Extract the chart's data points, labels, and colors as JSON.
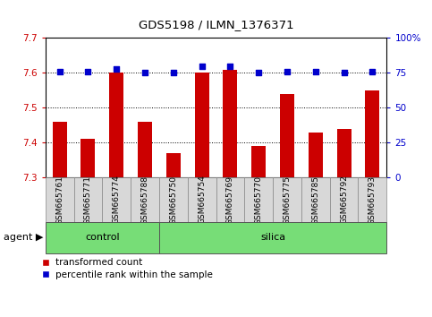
{
  "title": "GDS5198 / ILMN_1376371",
  "samples": [
    "GSM665761",
    "GSM665771",
    "GSM665774",
    "GSM665788",
    "GSM665750",
    "GSM665754",
    "GSM665769",
    "GSM665770",
    "GSM665775",
    "GSM665785",
    "GSM665792",
    "GSM665793"
  ],
  "transformed_count": [
    7.46,
    7.41,
    7.6,
    7.46,
    7.37,
    7.6,
    7.61,
    7.39,
    7.54,
    7.43,
    7.44,
    7.55
  ],
  "percentile_rank": [
    76,
    76,
    78,
    75,
    75,
    80,
    80,
    75,
    76,
    76,
    75,
    76
  ],
  "control_indices": [
    0,
    1,
    2,
    3
  ],
  "silica_indices": [
    4,
    5,
    6,
    7,
    8,
    9,
    10,
    11
  ],
  "group_row_label": "agent",
  "ylim_left": [
    7.3,
    7.7
  ],
  "ylim_right": [
    0,
    100
  ],
  "yticks_left": [
    7.3,
    7.4,
    7.5,
    7.6,
    7.7
  ],
  "yticks_right": [
    0,
    25,
    50,
    75,
    100
  ],
  "bar_color": "#CC0000",
  "dot_color": "#0000CC",
  "tick_label_color_left": "#CC0000",
  "tick_label_color_right": "#0000CC",
  "grid_linestyle": "dotted",
  "bar_width": 0.5,
  "dot_size": 25,
  "sample_box_color": "#D8D8D8",
  "group_box_color": "#77DD77",
  "legend_bar_label": "transformed count",
  "legend_dot_label": "percentile rank within the sample"
}
